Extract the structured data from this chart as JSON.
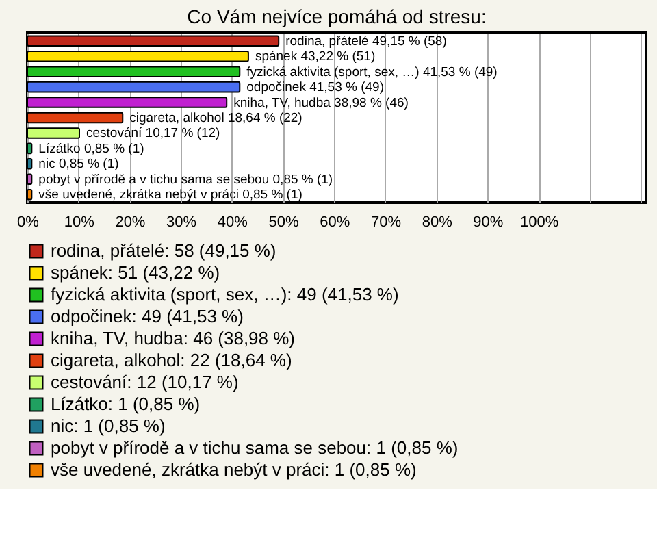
{
  "chart_data": {
    "type": "bar",
    "orientation": "horizontal",
    "title": "Co Vám nejvíce pomáhá od stresu:",
    "categories": [
      "rodina, přátelé",
      "spánek",
      "fyzická aktivita (sport, sex, …)",
      "odpočinek",
      "kniha, TV, hudba",
      "cigareta, alkohol",
      "cestování",
      "Lízátko",
      "nic",
      "pobyt v přírodě a v tichu sama se sebou",
      "vše uvedené, zkrátka nebýt v práci"
    ],
    "series": [
      {
        "name": "rodina, přátelé: 58 (49,15 %)",
        "color": "#c0281c",
        "values": [
          49.15,
          null,
          null,
          null,
          null,
          null,
          null,
          null,
          null,
          null,
          null
        ],
        "value_labels": [
          "49,15 % (58)",
          null,
          null,
          null,
          null,
          null,
          null,
          null,
          null,
          null,
          null
        ]
      },
      {
        "name": "spánek: 51 (43,22 %)",
        "color": "#ffe000",
        "values": [
          null,
          43.22,
          null,
          null,
          null,
          null,
          null,
          null,
          null,
          null,
          null
        ],
        "value_labels": [
          null,
          "43,22 % (51)",
          null,
          null,
          null,
          null,
          null,
          null,
          null,
          null,
          null
        ]
      },
      {
        "name": "fyzická aktivita (sport, sex, …): 49 (41,53 %)",
        "color": "#20c020",
        "values": [
          null,
          null,
          41.53,
          null,
          null,
          null,
          null,
          null,
          null,
          null,
          null
        ],
        "value_labels": [
          null,
          null,
          "41,53 % (49)",
          null,
          null,
          null,
          null,
          null,
          null,
          null,
          null
        ]
      },
      {
        "name": "odpočinek: 49 (41,53 %)",
        "color": "#4a6ef0",
        "values": [
          null,
          null,
          null,
          41.53,
          null,
          null,
          null,
          null,
          null,
          null,
          null
        ],
        "value_labels": [
          null,
          null,
          null,
          "41,53 % (49)",
          null,
          null,
          null,
          null,
          null,
          null,
          null
        ]
      },
      {
        "name": "kniha, TV, hudba: 46 (38,98 %)",
        "color": "#c020d0",
        "values": [
          null,
          null,
          null,
          null,
          38.98,
          null,
          null,
          null,
          null,
          null,
          null
        ],
        "value_labels": [
          null,
          null,
          null,
          null,
          "38,98 % (46)",
          null,
          null,
          null,
          null,
          null,
          null
        ]
      },
      {
        "name": "cigareta, alkohol: 22 (18,64 %)",
        "color": "#e04010",
        "values": [
          null,
          null,
          null,
          null,
          null,
          18.64,
          null,
          null,
          null,
          null,
          null
        ],
        "value_labels": [
          null,
          null,
          null,
          null,
          null,
          "18,64 % (22)",
          null,
          null,
          null,
          null,
          null
        ]
      },
      {
        "name": "cestování: 12 (10,17 %)",
        "color": "#c8ff70",
        "values": [
          null,
          null,
          null,
          null,
          null,
          null,
          10.17,
          null,
          null,
          null,
          null
        ],
        "value_labels": [
          null,
          null,
          null,
          null,
          null,
          null,
          "10,17 % (12)",
          null,
          null,
          null,
          null
        ]
      },
      {
        "name": "Lízátko: 1 (0,85 %)",
        "color": "#20a060",
        "values": [
          null,
          null,
          null,
          null,
          null,
          null,
          null,
          0.85,
          null,
          null,
          null
        ],
        "value_labels": [
          null,
          null,
          null,
          null,
          null,
          null,
          null,
          "0,85 % (1)",
          null,
          null,
          null
        ]
      },
      {
        "name": "nic: 1 (0,85 %)",
        "color": "#207890",
        "values": [
          null,
          null,
          null,
          null,
          null,
          null,
          null,
          null,
          0.85,
          null,
          null
        ],
        "value_labels": [
          null,
          null,
          null,
          null,
          null,
          null,
          null,
          null,
          "0,85 % (1)",
          null,
          null
        ]
      },
      {
        "name": "pobyt v přírodě a v tichu sama se sebou: 1 (0,85 %)",
        "color": "#c060c0",
        "values": [
          null,
          null,
          null,
          null,
          null,
          null,
          null,
          null,
          null,
          0.85,
          null
        ],
        "value_labels": [
          null,
          null,
          null,
          null,
          null,
          null,
          null,
          null,
          null,
          "0,85 % (1)",
          null
        ]
      },
      {
        "name": "vše uvedené, zkrátka nebýt v práci: 1 (0,85 %)",
        "color": "#f08000",
        "values": [
          null,
          null,
          null,
          null,
          null,
          null,
          null,
          null,
          null,
          null,
          0.85
        ],
        "value_labels": [
          null,
          null,
          null,
          null,
          null,
          null,
          null,
          null,
          null,
          null,
          "0,85 % (1)"
        ]
      }
    ],
    "xlim": [
      0,
      121
    ],
    "xticks": [
      {
        "value": 0,
        "label": "0%"
      },
      {
        "value": 10,
        "label": "10%"
      },
      {
        "value": 20,
        "label": "20%"
      },
      {
        "value": 30,
        "label": "30%"
      },
      {
        "value": 40,
        "label": "40%"
      },
      {
        "value": 50,
        "label": "50%"
      },
      {
        "value": 60,
        "label": "60%"
      },
      {
        "value": 70,
        "label": "70%"
      },
      {
        "value": 80,
        "label": "80%"
      },
      {
        "value": 90,
        "label": "90%"
      },
      {
        "value": 100,
        "label": "100%"
      },
      {
        "value": 110,
        "label": null
      },
      {
        "value": 120,
        "label": null
      }
    ],
    "grid": "x",
    "legend": "bottom",
    "tick_labels": "x"
  }
}
